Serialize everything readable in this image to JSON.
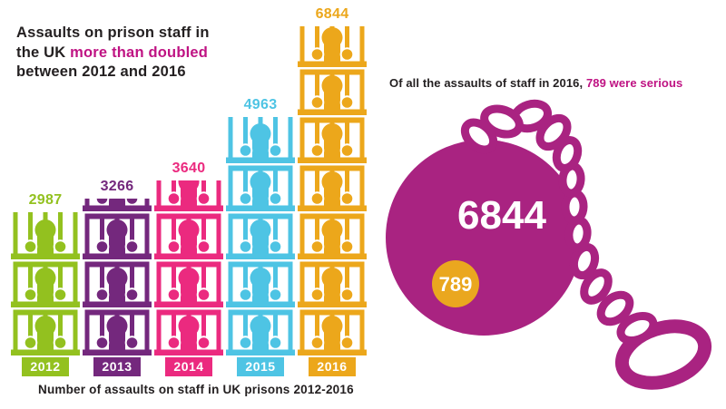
{
  "headline": {
    "line1": "Assaults on prison staff in",
    "line2_black": "the UK ",
    "line2_highlight": "more than doubled",
    "line3": "between 2012 and 2016"
  },
  "stat_line": {
    "black": "Of all the assaults of staff in 2016, ",
    "highlight": "789 were serious"
  },
  "chart_data": {
    "type": "bar",
    "subtype": "pictogram",
    "icon": "prisoner-in-cage",
    "unit_per_icon": 1000,
    "categories": [
      "2012",
      "2013",
      "2014",
      "2015",
      "2016"
    ],
    "values": [
      2987,
      3266,
      3640,
      4963,
      6844
    ],
    "bar_colors": [
      "#93c11f",
      "#74287d",
      "#eb2a7f",
      "#4ec4e4",
      "#eca71b"
    ],
    "title": "Number of assaults on staff in UK prisons 2012-2016",
    "xlabel": "",
    "ylabel": "",
    "value_labels": [
      "2987",
      "3266",
      "3640",
      "4963",
      "6844"
    ],
    "legend": "none",
    "grid": false
  },
  "ball_chain": {
    "total": "6844",
    "serious": "789",
    "ball_color": "#a92381",
    "badge_color": "#eaa71f"
  },
  "colors": {
    "highlight_magenta": "#bf1383",
    "text_black": "#231f20"
  }
}
